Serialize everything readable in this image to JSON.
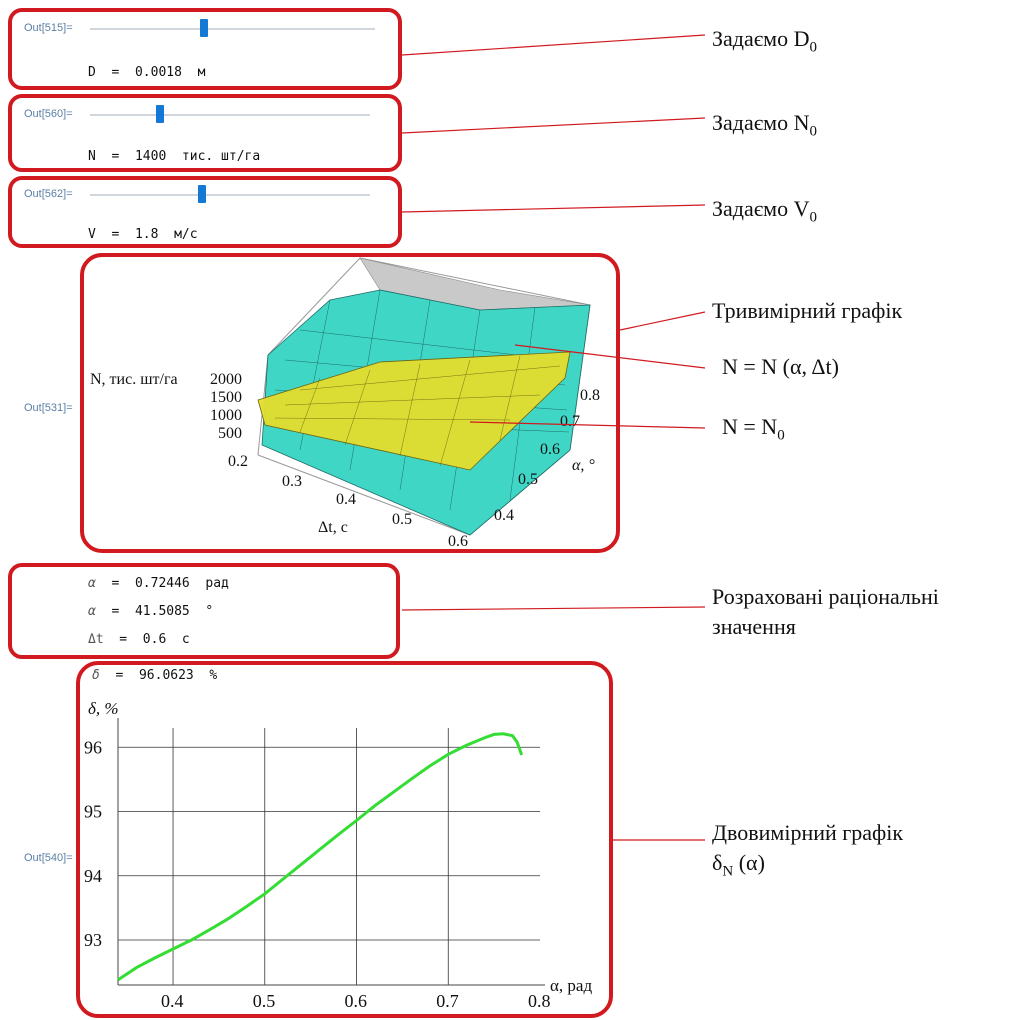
{
  "sliders": [
    {
      "out": "Out[515]=",
      "value_text": "D  =  0.0018  м",
      "position": 0.4,
      "annotation": "Задаємо D",
      "sub": "0"
    },
    {
      "out": "Out[560]=",
      "value_text": "N  =  1400  тис. шт/га",
      "position": 0.25,
      "annotation": "Задаємо N",
      "sub": "0"
    },
    {
      "out": "Out[562]=",
      "value_text": "V  =  1.8  м/с",
      "position": 0.4,
      "annotation": "Задаємо V",
      "sub": "0"
    }
  ],
  "plot3d": {
    "out": "Out[531]=",
    "zlabel": "N, тис. шт/га",
    "zticks": [
      "2000",
      "1500",
      "1000",
      "500"
    ],
    "xlabel": "Δt, с",
    "xticks": [
      "0.2",
      "0.3",
      "0.4",
      "0.5",
      "0.6"
    ],
    "ylabel": "α, °",
    "yticks": [
      "0.8",
      "0.7",
      "0.6",
      "0.5",
      "0.4"
    ],
    "annotations": {
      "title": "Тривимірний графік",
      "surface": "N = N (α, Δt)",
      "plane_main": "N = N",
      "plane_sub": "0"
    }
  },
  "results": {
    "lines": [
      {
        "sym": "α",
        "text": "  =  0.72446  рад"
      },
      {
        "sym": "α",
        "text": "  =  41.5085  °"
      },
      {
        "sym": "Δt",
        "text": "  =  0.6  с"
      }
    ],
    "annotation_line1": "Розраховані раціональні",
    "annotation_line2": "значення"
  },
  "plot2d": {
    "out": "Out[540]=",
    "delta_sym": "δ",
    "delta_text": "  =  96.0623  %",
    "annotation_line1": "Двовимірний графік",
    "annotation_line2_main": "δ",
    "annotation_line2_sub": "N",
    "annotation_line2_rest": " (α)"
  },
  "chart_data": {
    "type": "line",
    "xlabel": "α, рад",
    "ylabel": "δ, %",
    "xlim": [
      0.34,
      0.8
    ],
    "ylim": [
      92.3,
      96.3
    ],
    "xticks": [
      0.4,
      0.5,
      0.6,
      0.7,
      0.8
    ],
    "yticks": [
      93,
      94,
      95,
      96
    ],
    "grid": true,
    "color": "#33dd33",
    "x": [
      0.34,
      0.36,
      0.38,
      0.4,
      0.42,
      0.44,
      0.46,
      0.48,
      0.5,
      0.52,
      0.54,
      0.56,
      0.58,
      0.6,
      0.62,
      0.64,
      0.66,
      0.68,
      0.7,
      0.72,
      0.74,
      0.75,
      0.76,
      0.77,
      0.775,
      0.78
    ],
    "y": [
      92.38,
      92.57,
      92.72,
      92.86,
      93.0,
      93.16,
      93.33,
      93.52,
      93.72,
      93.95,
      94.18,
      94.41,
      94.64,
      94.86,
      95.09,
      95.3,
      95.51,
      95.71,
      95.89,
      96.03,
      96.15,
      96.2,
      96.21,
      96.18,
      96.08,
      95.88
    ]
  },
  "colors": {
    "frame": "#d11a1f",
    "slider": "#1479d4",
    "out_label": "#5b7fa6",
    "surface": "#3fd3c4",
    "plane": "#e3db2a"
  }
}
